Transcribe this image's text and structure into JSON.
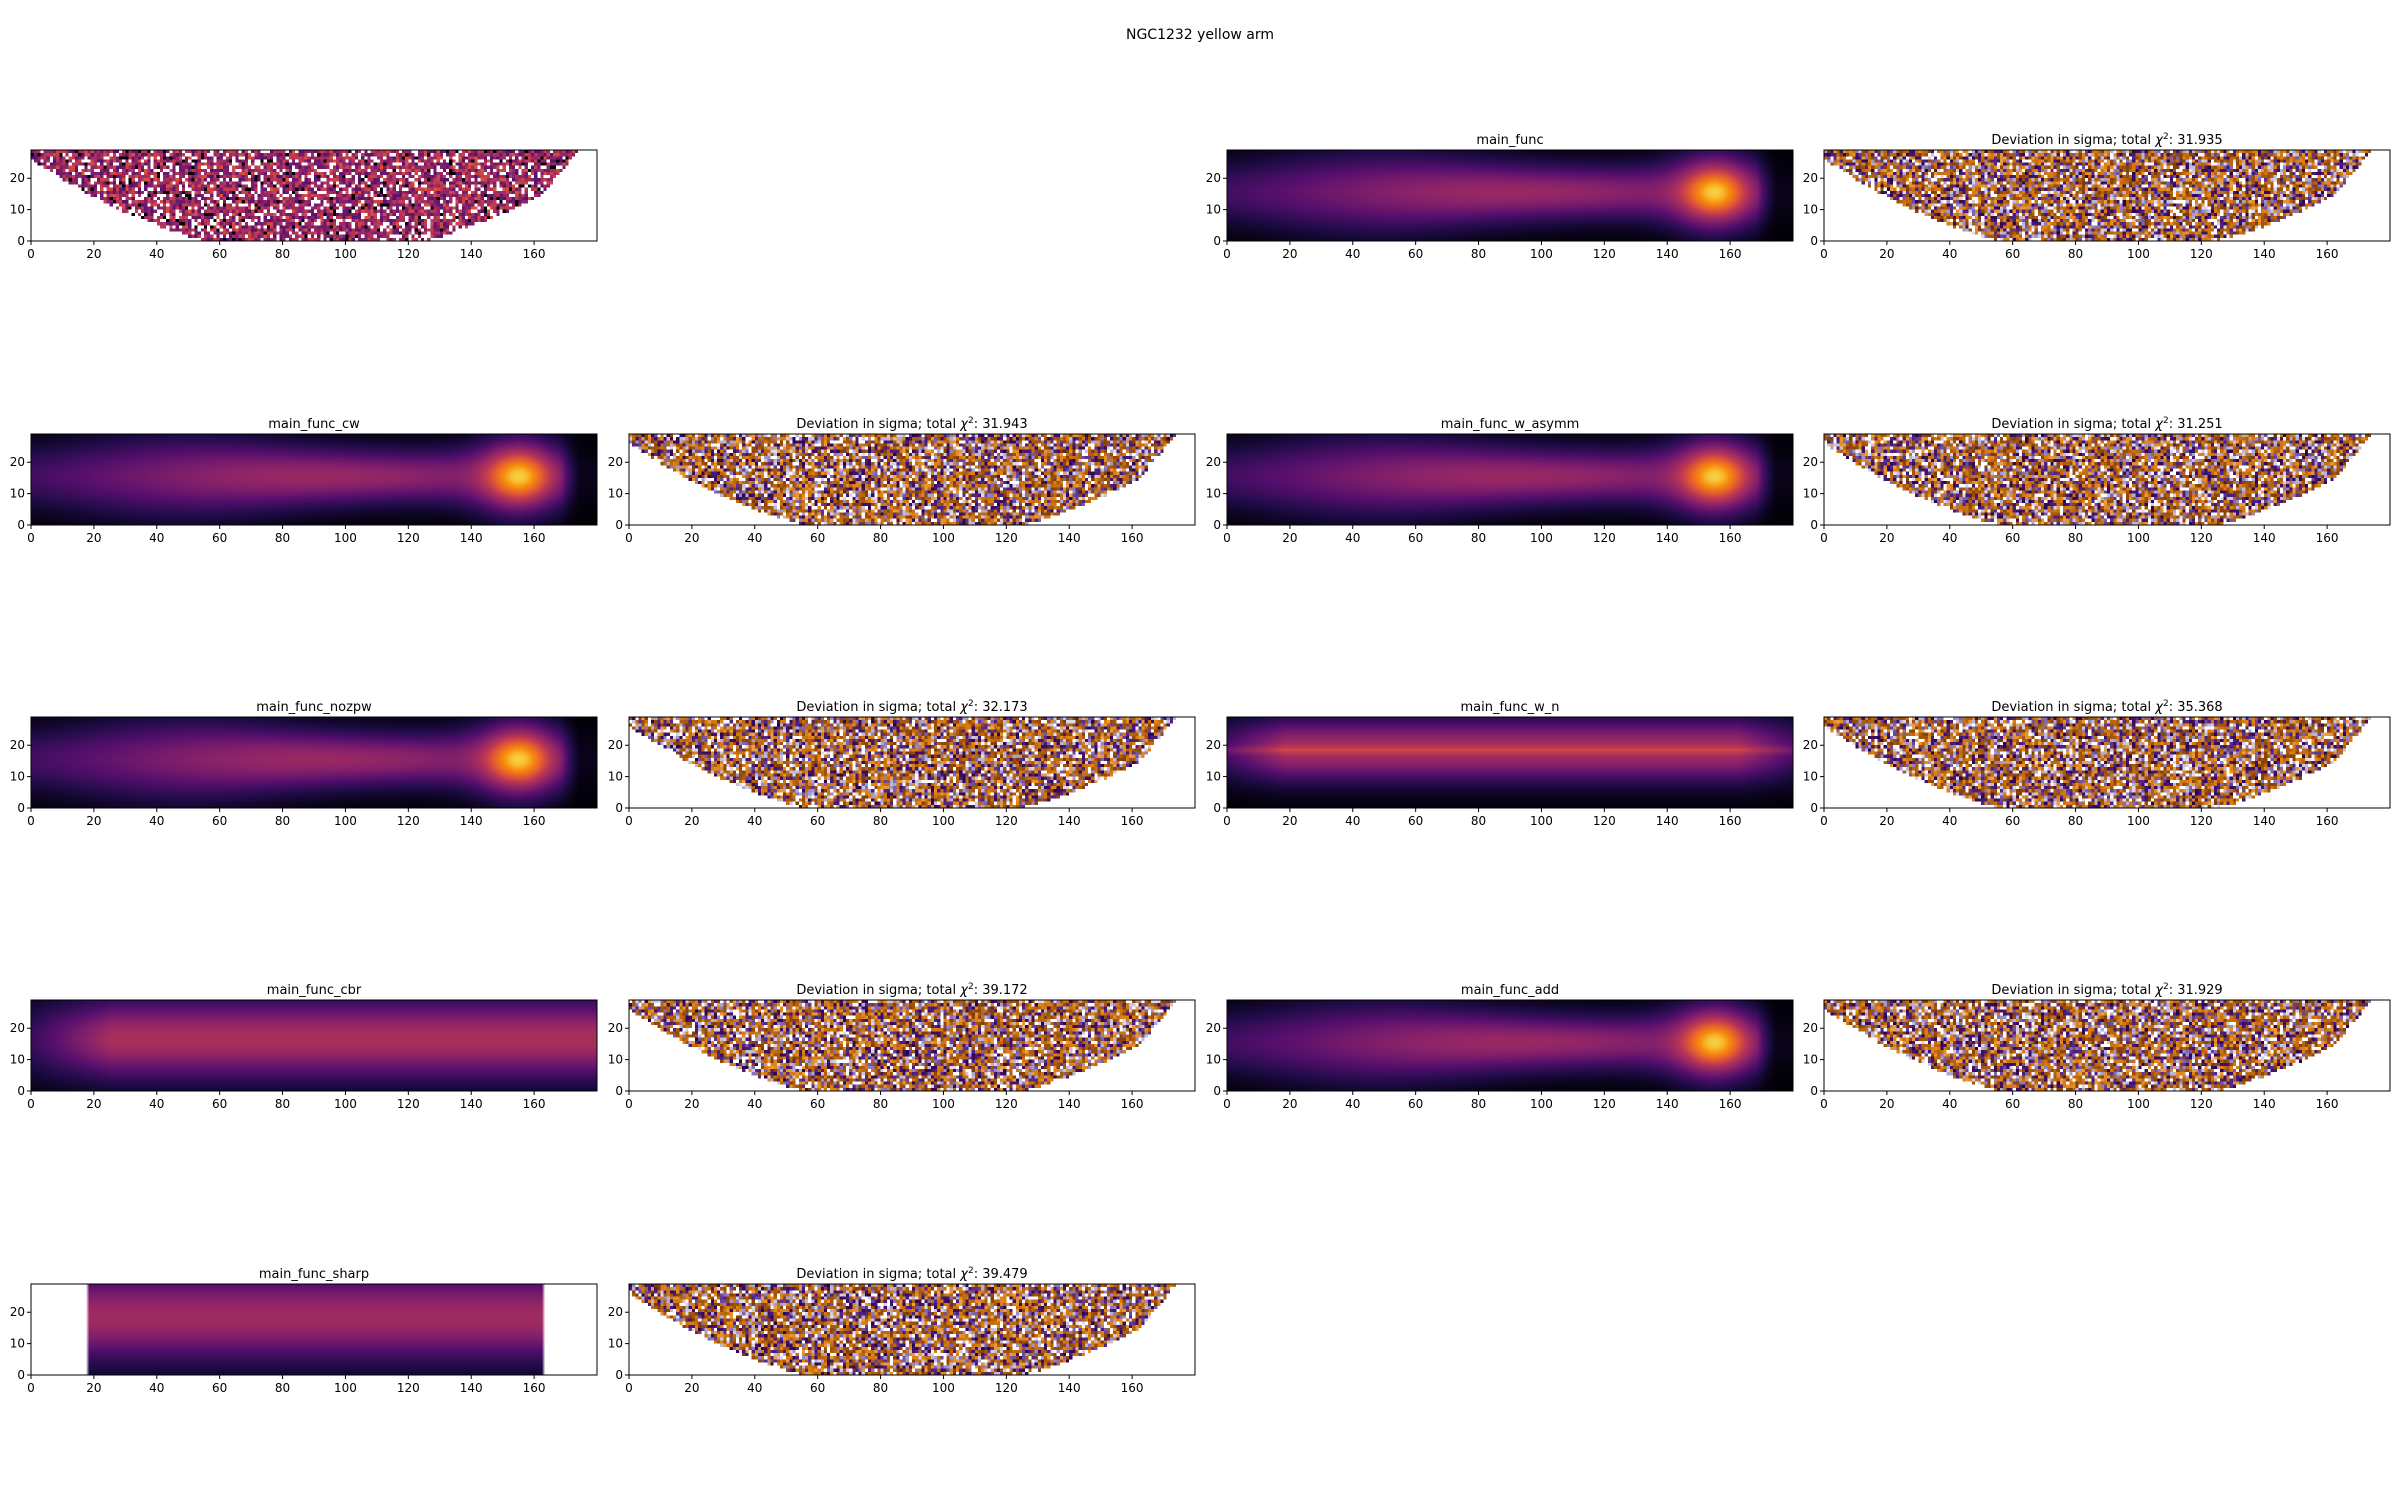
{
  "figure": {
    "suptitle": "NGC1232 yellow arm"
  },
  "axes_common": {
    "x_ticks": [
      "0",
      "20",
      "40",
      "60",
      "80",
      "100",
      "120",
      "140",
      "160"
    ],
    "y_ticks": [
      "0",
      "10",
      "20"
    ],
    "xlim": [
      0,
      180
    ],
    "ylim": [
      0,
      29
    ]
  },
  "chart_data": [
    {
      "type": "heatmap",
      "panel": "data",
      "title": "",
      "row": 0,
      "col": 0,
      "cmap": "inferno",
      "pattern": "data"
    },
    {
      "type": "heatmap",
      "panel": "model",
      "title": "main_func",
      "row": 0,
      "col": 2,
      "cmap": "inferno",
      "pattern": "model-blob"
    },
    {
      "type": "heatmap",
      "panel": "deviation",
      "title_prefix": "Deviation in sigma; total",
      "chi2": "31.935",
      "row": 0,
      "col": 3,
      "cmap": "PuOr",
      "pattern": "deviation"
    },
    {
      "type": "heatmap",
      "panel": "model",
      "title": "main_func_cw",
      "row": 1,
      "col": 0,
      "cmap": "inferno",
      "pattern": "model-blob"
    },
    {
      "type": "heatmap",
      "panel": "deviation",
      "title_prefix": "Deviation in sigma; total",
      "chi2": "31.943",
      "row": 1,
      "col": 1,
      "cmap": "PuOr",
      "pattern": "deviation"
    },
    {
      "type": "heatmap",
      "panel": "model",
      "title": "main_func_w_asymm",
      "row": 1,
      "col": 2,
      "cmap": "inferno",
      "pattern": "model-blob"
    },
    {
      "type": "heatmap",
      "panel": "deviation",
      "title_prefix": "Deviation in sigma; total",
      "chi2": "31.251",
      "row": 1,
      "col": 3,
      "cmap": "PuOr",
      "pattern": "deviation"
    },
    {
      "type": "heatmap",
      "panel": "model",
      "title": "main_func_nozpw",
      "row": 2,
      "col": 0,
      "cmap": "inferno",
      "pattern": "model-blob"
    },
    {
      "type": "heatmap",
      "panel": "deviation",
      "title_prefix": "Deviation in sigma; total",
      "chi2": "32.173",
      "row": 2,
      "col": 1,
      "cmap": "PuOr",
      "pattern": "deviation"
    },
    {
      "type": "heatmap",
      "panel": "model",
      "title": "main_func_w_n",
      "row": 2,
      "col": 2,
      "cmap": "inferno",
      "pattern": "model-stripe"
    },
    {
      "type": "heatmap",
      "panel": "deviation",
      "title_prefix": "Deviation in sigma; total",
      "chi2": "35.368",
      "row": 2,
      "col": 3,
      "cmap": "PuOr",
      "pattern": "deviation"
    },
    {
      "type": "heatmap",
      "panel": "model",
      "title": "main_func_cbr",
      "row": 3,
      "col": 0,
      "cmap": "inferno",
      "pattern": "model-flat"
    },
    {
      "type": "heatmap",
      "panel": "deviation",
      "title_prefix": "Deviation in sigma; total",
      "chi2": "39.172",
      "row": 3,
      "col": 1,
      "cmap": "PuOr",
      "pattern": "deviation"
    },
    {
      "type": "heatmap",
      "panel": "model",
      "title": "main_func_add",
      "row": 3,
      "col": 2,
      "cmap": "inferno",
      "pattern": "model-blob"
    },
    {
      "type": "heatmap",
      "panel": "deviation",
      "title_prefix": "Deviation in sigma; total",
      "chi2": "31.929",
      "row": 3,
      "col": 3,
      "cmap": "PuOr",
      "pattern": "deviation"
    },
    {
      "type": "heatmap",
      "panel": "model",
      "title": "main_func_sharp",
      "row": 4,
      "col": 0,
      "cmap": "inferno",
      "pattern": "model-sharp"
    },
    {
      "type": "heatmap",
      "panel": "deviation",
      "title_prefix": "Deviation in sigma; total",
      "chi2": "39.479",
      "row": 4,
      "col": 1,
      "cmap": "PuOr",
      "pattern": "deviation"
    }
  ]
}
